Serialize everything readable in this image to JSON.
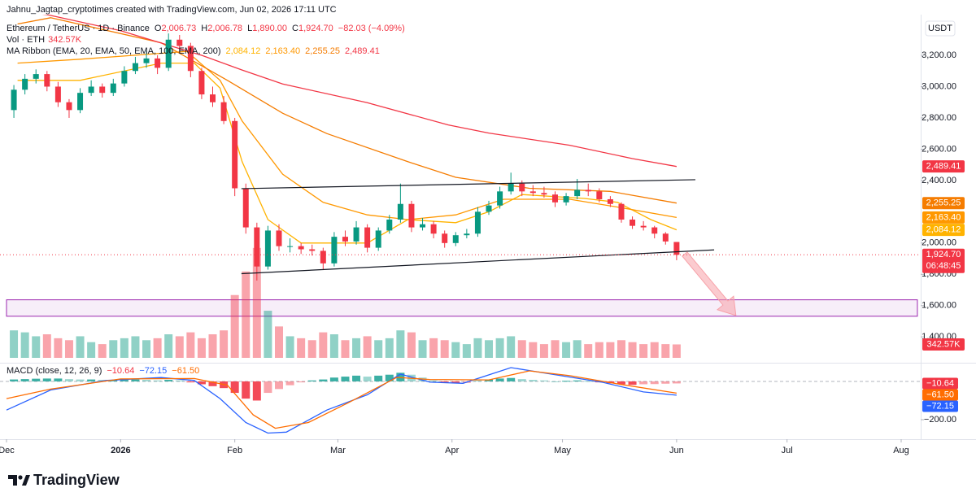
{
  "header": {
    "attribution": "Jahnu_Jagtap_cryptotimes created with TradingView.com, Jun 02, 2026 17:11 UTC"
  },
  "footer": {
    "brand": "TradingView"
  },
  "chart_data": {
    "type": "candlestick",
    "currency": "USDT",
    "up_color": "#089981",
    "down_color": "#f23645",
    "ohlc_legend": {
      "title": "Ethereum / TetherUS · 1D · Binance",
      "items": [
        {
          "prefix": "O",
          "text": "2,006.73"
        },
        {
          "prefix": "H",
          "text": "2,006.78"
        },
        {
          "prefix": "L",
          "text": "1,890.00"
        },
        {
          "prefix": "C",
          "text": "1,924.70"
        }
      ],
      "change": "−82.03 (−4.09%)"
    },
    "volume_legend": {
      "title": "Vol · ETH",
      "text": "342.57K"
    },
    "ribbon_legend": {
      "title": "MA Ribbon (EMA, 20, EMA, 50, EMA, 100, EMA, 200)",
      "texts": [
        "2,084.12",
        "2,163.40",
        "2,255.25",
        "2,489.41"
      ]
    },
    "macd_legend": {
      "title": "MACD (close, 12, 26, 9)",
      "texts": [
        "−10.64",
        "−72.15",
        "−61.50"
      ]
    },
    "x": [
      2,
      5,
      8,
      11,
      14,
      17,
      20,
      23,
      26,
      29,
      32,
      35,
      38,
      41,
      44,
      47,
      50,
      53,
      56,
      59,
      62,
      65,
      68,
      71,
      74,
      77,
      80,
      83,
      86,
      89,
      92,
      95,
      98,
      101,
      104,
      107,
      110,
      113,
      116,
      119,
      122,
      125,
      128,
      131,
      134,
      137,
      140,
      143,
      146,
      149,
      152,
      155,
      158,
      161,
      164,
      167,
      170,
      173,
      176,
      179,
      182
    ],
    "ohlc": [
      [
        2850,
        3010,
        2800,
        2980
      ],
      [
        2980,
        3080,
        2950,
        3050
      ],
      [
        3050,
        3110,
        3020,
        3080
      ],
      [
        3080,
        3100,
        2970,
        3000
      ],
      [
        3000,
        3030,
        2870,
        2900
      ],
      [
        2900,
        2920,
        2800,
        2850
      ],
      [
        2850,
        2990,
        2830,
        2960
      ],
      [
        2960,
        3040,
        2940,
        3000
      ],
      [
        3000,
        3020,
        2930,
        2960
      ],
      [
        2960,
        3050,
        2940,
        3020
      ],
      [
        3020,
        3130,
        3000,
        3100
      ],
      [
        3100,
        3190,
        3080,
        3150
      ],
      [
        3150,
        3230,
        3120,
        3180
      ],
      [
        3180,
        3200,
        3080,
        3120
      ],
      [
        3120,
        3340,
        3100,
        3300
      ],
      [
        3300,
        3330,
        3220,
        3260
      ],
      [
        3260,
        3280,
        3060,
        3100
      ],
      [
        3100,
        3120,
        2920,
        2950
      ],
      [
        2950,
        3000,
        2870,
        2900
      ],
      [
        2900,
        2940,
        2760,
        2780
      ],
      [
        2780,
        2800,
        2300,
        2350
      ],
      [
        2350,
        2380,
        2060,
        2100
      ],
      [
        2100,
        2130,
        1760,
        1850
      ],
      [
        1850,
        2110,
        1830,
        2080
      ],
      [
        2080,
        2120,
        1950,
        1980
      ],
      [
        1980,
        2030,
        1940,
        1980
      ],
      [
        1980,
        2000,
        1930,
        1960
      ],
      [
        1960,
        1990,
        1920,
        1950
      ],
      [
        1950,
        1970,
        1830,
        1870
      ],
      [
        1870,
        2070,
        1850,
        2040
      ],
      [
        2040,
        2080,
        1980,
        2010
      ],
      [
        2010,
        2140,
        1990,
        2100
      ],
      [
        2100,
        2120,
        1940,
        1970
      ],
      [
        1970,
        2100,
        1950,
        2080
      ],
      [
        2080,
        2180,
        2060,
        2150
      ],
      [
        2150,
        2380,
        2130,
        2250
      ],
      [
        2250,
        2270,
        2070,
        2100
      ],
      [
        2100,
        2160,
        2080,
        2120
      ],
      [
        2120,
        2140,
        2030,
        2060
      ],
      [
        2060,
        2080,
        1970,
        2000
      ],
      [
        2000,
        2070,
        1980,
        2050
      ],
      [
        2050,
        2090,
        2030,
        2060
      ],
      [
        2060,
        2230,
        2040,
        2200
      ],
      [
        2200,
        2270,
        2180,
        2240
      ],
      [
        2240,
        2360,
        2220,
        2330
      ],
      [
        2330,
        2450,
        2310,
        2380
      ],
      [
        2380,
        2400,
        2300,
        2330
      ],
      [
        2330,
        2370,
        2300,
        2320
      ],
      [
        2320,
        2360,
        2290,
        2310
      ],
      [
        2310,
        2330,
        2230,
        2260
      ],
      [
        2260,
        2320,
        2240,
        2300
      ],
      [
        2300,
        2410,
        2280,
        2340
      ],
      [
        2340,
        2380,
        2300,
        2330
      ],
      [
        2330,
        2350,
        2260,
        2280
      ],
      [
        2280,
        2300,
        2230,
        2250
      ],
      [
        2250,
        2260,
        2130,
        2150
      ],
      [
        2150,
        2170,
        2090,
        2110
      ],
      [
        2110,
        2140,
        2080,
        2100
      ],
      [
        2100,
        2110,
        2030,
        2060
      ],
      [
        2060,
        2070,
        1990,
        2010
      ],
      [
        2006.73,
        2006.78,
        1890,
        1924.7
      ]
    ],
    "xlim": [
      -1.77,
      248.3
    ],
    "xticks": [
      {
        "value": 0,
        "label": "Dec"
      },
      {
        "value": 31,
        "label": "2026"
      },
      {
        "value": 62,
        "label": "Feb"
      },
      {
        "value": 90,
        "label": "Mar"
      },
      {
        "value": 121,
        "label": "Apr"
      },
      {
        "value": 151,
        "label": "May"
      },
      {
        "value": 182,
        "label": "Jun"
      },
      {
        "value": 212,
        "label": "Jul"
      },
      {
        "value": 243,
        "label": "Aug"
      }
    ],
    "ylim": [
      1240,
      3460
    ],
    "yticks": [
      {
        "value": 1400,
        "label": "1,400.00"
      },
      {
        "value": 1600,
        "label": "1,600.00"
      },
      {
        "value": 1800,
        "label": "1,800.00"
      },
      {
        "value": 2000,
        "label": "2,000.00"
      },
      {
        "value": 2400,
        "label": "2,400.00"
      },
      {
        "value": 2600,
        "label": "2,600.00"
      },
      {
        "value": 2800,
        "label": "2,800.00"
      },
      {
        "value": 3000,
        "label": "3,000.00"
      },
      {
        "value": 3200,
        "label": "3,200.00"
      }
    ],
    "series": [
      {
        "color": "#ffb300",
        "x": [
          3,
          20,
          42,
          51,
          58,
          64,
          71,
          80,
          98,
          109,
          122,
          131,
          140,
          157,
          166,
          175,
          182
        ],
        "values": [
          3040,
          3040,
          3150,
          3150,
          2990,
          2520,
          2150,
          2000,
          2000,
          2150,
          2130,
          2200,
          2310,
          2285,
          2260,
          2150,
          2084.12
        ]
      },
      {
        "color": "#ff9800",
        "x": [
          3,
          20,
          49,
          58,
          64,
          75,
          86,
          98,
          109,
          122,
          135,
          153,
          166,
          182
        ],
        "values": [
          3150,
          3175,
          3225,
          3040,
          2780,
          2440,
          2260,
          2180,
          2150,
          2180,
          2280,
          2280,
          2230,
          2163.4
        ]
      },
      {
        "color": "#f57c00",
        "x": [
          3,
          12,
          42,
          60,
          75,
          87,
          109,
          122,
          142,
          164,
          182
        ],
        "values": [
          3400,
          3440,
          3280,
          3040,
          2830,
          2700,
          2520,
          2420,
          2350,
          2330,
          2255.25
        ]
      },
      {
        "color": "#f23645",
        "x": [
          3,
          11,
          31,
          53,
          64,
          75,
          98,
          120,
          131,
          153,
          170,
          182
        ],
        "values": [
          3480,
          3460,
          3357,
          3200,
          3106,
          3017,
          2897,
          2755,
          2703,
          2625,
          2540,
          2489.41
        ]
      }
    ],
    "price_tags": [
      {
        "value": 2489.41,
        "label": "2,489.41",
        "color": "#f23645"
      },
      {
        "value": 2255.25,
        "label": "2,255.25",
        "color": "#f57c00"
      },
      {
        "value": 2163.4,
        "label": "2,163.40",
        "color": "#ff9800"
      },
      {
        "value": 2084.12,
        "label": "2,084.12",
        "color": "#ffb300"
      },
      {
        "value": 1924.7,
        "label": "1,924.70",
        "color": "#f23645",
        "countdown": "06:48:45"
      }
    ],
    "volume": {
      "ylim": [
        0,
        2900000
      ],
      "values": [
        700000,
        650000,
        550000,
        600000,
        500000,
        450000,
        550000,
        400000,
        350000,
        450000,
        500000,
        550000,
        450000,
        500000,
        600000,
        550000,
        650000,
        500000,
        600000,
        700000,
        1600000,
        2200000,
        2800000,
        1200000,
        800000,
        550000,
        500000,
        450000,
        650000,
        600000,
        450000,
        500000,
        550000,
        450000,
        500000,
        700000,
        650000,
        450000,
        500000,
        450000,
        400000,
        350000,
        500000,
        450000,
        500000,
        550000,
        450000,
        400000,
        350000,
        450000,
        400000,
        450000,
        350000,
        400000,
        400000,
        450000,
        400000,
        350000,
        400000,
        350000,
        342570
      ],
      "tag": {
        "value": 342570,
        "label": "342.57K",
        "color": "#f23645"
      }
    },
    "macd": {
      "ylim": [
        -302,
        89
      ],
      "yticks": [
        {
          "value": -200,
          "label": "−200.00"
        }
      ],
      "hist": [
        10,
        12,
        14,
        15,
        15,
        12,
        10,
        10,
        8,
        8,
        8,
        10,
        8,
        5,
        8,
        5,
        -5,
        -15,
        -25,
        -35,
        -60,
        -90,
        -100,
        -60,
        -40,
        -20,
        -5,
        5,
        10,
        20,
        25,
        30,
        25,
        30,
        35,
        45,
        35,
        20,
        5,
        -5,
        -10,
        -8,
        5,
        10,
        15,
        18,
        12,
        8,
        5,
        0,
        3,
        5,
        2,
        -5,
        -10,
        -15,
        -18,
        -15,
        -14,
        -12,
        -10.64
      ],
      "pos_color": "#26a69a",
      "neg_color": "#f23645",
      "line": {
        "color": "#2962ff",
        "x": [
          0,
          12,
          27,
          42,
          51,
          58,
          65,
          71,
          76,
          87,
          98,
          107,
          115,
          124,
          137,
          148,
          162,
          173,
          182
        ],
        "values": [
          -150,
          -45,
          5,
          20,
          5,
          -90,
          -215,
          -270,
          -265,
          -150,
          -70,
          38,
          -4,
          -10,
          72,
          38,
          -5,
          -55,
          -72.15
        ]
      },
      "signal": {
        "color": "#ff6d00",
        "x": [
          0,
          12,
          31,
          51,
          60,
          67,
          73,
          82,
          93,
          106,
          115,
          131,
          142,
          153,
          166,
          182
        ],
        "values": [
          -90,
          -40,
          13,
          15,
          -20,
          -175,
          -245,
          -215,
          -110,
          21,
          10,
          8,
          55,
          30,
          -13,
          -61.5
        ]
      },
      "tags": [
        {
          "value": -10.64,
          "label": "−10.64",
          "color": "#f23645"
        },
        {
          "value": -61.5,
          "label": "−61.50",
          "color": "#ff6d00"
        },
        {
          "value": -72.15,
          "label": "−72.15",
          "color": "#2962ff"
        }
      ]
    },
    "drawings": {
      "trendlines": [
        {
          "points": [
            [
              63.8,
              2347.7
            ],
            [
              187.1,
              2405
            ]
          ]
        },
        {
          "points": [
            [
              63.8,
              1804
            ],
            [
              192.2,
              1956
            ]
          ]
        }
      ],
      "zone": {
        "x": [
          0,
          247.4
        ],
        "y": [
          1532,
          1637
        ],
        "color": "#9c27b0"
      },
      "arrow": {
        "from": [
          184.2,
          1929
        ],
        "to": [
          198.1,
          1537
        ],
        "color": "#f7a1a8"
      }
    }
  }
}
